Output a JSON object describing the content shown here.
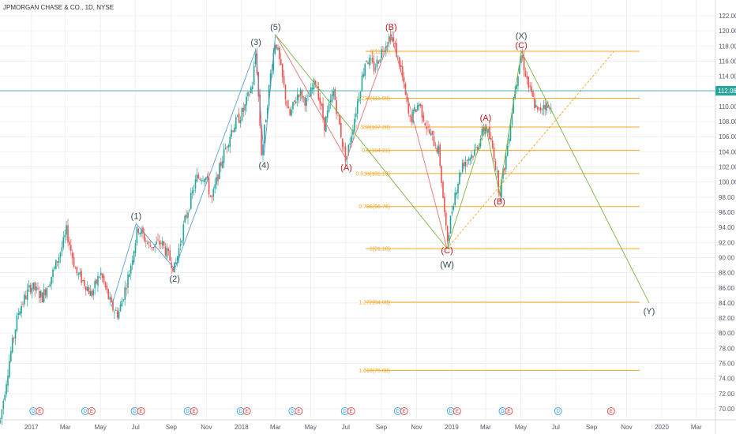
{
  "chart_data": {
    "type": "candlestick",
    "title": "JPMORGAN CHASE & CO., 1D, NYSE",
    "current_price": "112.08",
    "ylim": [
      69,
      122
    ],
    "y_ticks": [
      "70.00",
      "72.00",
      "74.00",
      "76.00",
      "78.00",
      "80.00",
      "82.00",
      "84.00",
      "86.00",
      "88.00",
      "90.00",
      "92.00",
      "94.00",
      "96.00",
      "98.00",
      "100.00",
      "102.00",
      "104.00",
      "106.00",
      "108.00",
      "110.00",
      "112.00",
      "114.00",
      "116.00",
      "118.00",
      "120.00",
      "122.00"
    ],
    "x_ticks": [
      "2017",
      "Mar",
      "May",
      "Jul",
      "Sep",
      "Nov",
      "2018",
      "Mar",
      "May",
      "Jul",
      "Sep",
      "Nov",
      "2019",
      "Mar",
      "May",
      "Jul",
      "Sep",
      "Nov",
      "2020",
      "Mar"
    ],
    "x_range": [
      "2016-12",
      "2020-03"
    ],
    "price_path": [
      [
        "2016-11-15",
        72.0
      ],
      [
        "2016-11-25",
        77.0
      ],
      [
        "2016-12-10",
        83.0
      ],
      [
        "2016-12-31",
        86.3
      ],
      [
        "2017-01-20",
        84.8
      ],
      [
        "2017-02-10",
        88.5
      ],
      [
        "2017-02-28",
        92.5
      ],
      [
        "2017-03-02",
        93.8
      ],
      [
        "2017-03-20",
        88.0
      ],
      [
        "2017-04-05",
        86.5
      ],
      [
        "2017-04-15",
        85.0
      ],
      [
        "2017-05-01",
        88.0
      ],
      [
        "2017-05-20",
        83.5
      ],
      [
        "2017-06-01",
        82.5
      ],
      [
        "2017-06-20",
        88.0
      ],
      [
        "2017-07-05",
        94.0
      ],
      [
        "2017-07-25",
        91.5
      ],
      [
        "2017-08-15",
        92.0
      ],
      [
        "2017-09-07",
        88.5
      ],
      [
        "2017-09-25",
        95.0
      ],
      [
        "2017-10-15",
        100.5
      ],
      [
        "2017-10-30",
        101.0
      ],
      [
        "2017-11-10",
        97.5
      ],
      [
        "2017-11-28",
        103.0
      ],
      [
        "2017-12-15",
        107.0
      ],
      [
        "2018-01-05",
        109.5
      ],
      [
        "2018-01-20",
        113.0
      ],
      [
        "2018-01-26",
        117.5
      ],
      [
        "2018-02-05",
        103.5
      ],
      [
        "2018-02-20",
        114.0
      ],
      [
        "2018-03-01",
        119.0
      ],
      [
        "2018-03-10",
        115.0
      ],
      [
        "2018-03-25",
        108.5
      ],
      [
        "2018-04-10",
        112.0
      ],
      [
        "2018-04-25",
        110.5
      ],
      [
        "2018-05-10",
        113.5
      ],
      [
        "2018-05-25",
        107.5
      ],
      [
        "2018-06-10",
        112.0
      ],
      [
        "2018-06-28",
        104.0
      ],
      [
        "2018-07-02",
        103.0
      ],
      [
        "2018-07-20",
        110.0
      ],
      [
        "2018-08-05",
        116.5
      ],
      [
        "2018-08-20",
        115.0
      ],
      [
        "2018-09-05",
        118.0
      ],
      [
        "2018-09-18",
        119.5
      ],
      [
        "2018-10-05",
        115.0
      ],
      [
        "2018-10-20",
        108.0
      ],
      [
        "2018-11-05",
        110.5
      ],
      [
        "2018-11-20",
        107.0
      ],
      [
        "2018-12-10",
        104.0
      ],
      [
        "2018-12-24",
        92.0
      ],
      [
        "2019-01-05",
        98.0
      ],
      [
        "2019-01-20",
        102.5
      ],
      [
        "2019-02-10",
        104.0
      ],
      [
        "2019-03-01",
        107.5
      ],
      [
        "2019-03-15",
        104.0
      ],
      [
        "2019-03-25",
        98.5
      ],
      [
        "2019-04-05",
        103.0
      ],
      [
        "2019-04-20",
        112.0
      ],
      [
        "2019-05-02",
        117.0
      ],
      [
        "2019-05-15",
        112.5
      ],
      [
        "2019-05-31",
        109.0
      ],
      [
        "2019-06-10",
        110.5
      ],
      [
        "2019-06-20",
        109.5
      ],
      [
        "2019-06-28",
        112.08
      ]
    ],
    "fib_levels": [
      {
        "label": "0(117.3)",
        "value": 117.3
      },
      {
        "label": "0.236(111.09)",
        "value": 111.09
      },
      {
        "label": "0.382(107.28)",
        "value": 107.28
      },
      {
        "label": "0.5(104.21)",
        "value": 104.21
      },
      {
        "label": "0.618(101.13)",
        "value": 101.13
      },
      {
        "label": "0.786(96.76)",
        "value": 96.76
      },
      {
        "label": "1(91.18)",
        "value": 91.18
      },
      {
        "label": "1.272(84.09)",
        "value": 84.09
      },
      {
        "label": "1.618(75.08)",
        "value": 75.08
      }
    ],
    "impulse_waves": [
      {
        "label": "(1)",
        "date": "2017-07-02",
        "value": 94.5
      },
      {
        "label": "(2)",
        "date": "2017-09-07",
        "value": 88.5
      },
      {
        "label": "(3)",
        "date": "2018-01-26",
        "value": 117.5
      },
      {
        "label": "(4)",
        "date": "2018-02-09",
        "value": 103.5
      },
      {
        "label": "(5)",
        "date": "2018-03-01",
        "value": 119.5
      }
    ],
    "abc_waves_2018": [
      {
        "label": "(A)",
        "date": "2018-07-02",
        "value": 103.0
      },
      {
        "label": "(B)",
        "date": "2018-09-18",
        "value": 119.5
      },
      {
        "label": "(C)",
        "date": "2018-12-24",
        "value": 91.2
      }
    ],
    "abc_waves_2019": [
      {
        "label": "(A)",
        "date": "2019-03-01",
        "value": 107.5
      },
      {
        "label": "(B)",
        "date": "2019-03-25",
        "value": 98.5
      },
      {
        "label": "(C)",
        "date": "2019-05-02",
        "value": 117.3
      }
    ],
    "wxy_waves": [
      {
        "label": "(W)",
        "date": "2018-12-24",
        "value": 91.2
      },
      {
        "label": "(X)",
        "date": "2019-05-02",
        "value": 117.3
      },
      {
        "label": "(Y)",
        "date": "2019-12-10",
        "value": 84.0
      }
    ],
    "trendline": {
      "from": [
        "2018-12-24",
        91.2
      ],
      "to": [
        "2019-10-10",
        117.3
      ]
    },
    "event_badges": [
      {
        "date": "2017-01-10",
        "letters": [
          "D",
          "E"
        ]
      },
      {
        "date": "2017-04-10",
        "letters": [
          "D",
          "E"
        ]
      },
      {
        "date": "2017-07-05",
        "letters": [
          "D",
          "E"
        ]
      },
      {
        "date": "2017-10-05",
        "letters": [
          "D",
          "E"
        ]
      },
      {
        "date": "2018-01-05",
        "letters": [
          "D",
          "E"
        ]
      },
      {
        "date": "2018-04-05",
        "letters": [
          "D",
          "E"
        ]
      },
      {
        "date": "2018-07-05",
        "letters": [
          "D",
          "E"
        ]
      },
      {
        "date": "2018-10-05",
        "letters": [
          "D",
          "E"
        ]
      },
      {
        "date": "2019-01-05",
        "letters": [
          "D",
          "E"
        ]
      },
      {
        "date": "2019-04-05",
        "letters": [
          "D",
          "E"
        ]
      },
      {
        "date": "2019-07-05",
        "letters": [
          "D"
        ]
      },
      {
        "date": "2019-10-05",
        "letters": [
          "E"
        ]
      }
    ],
    "colors": {
      "up": "#26a69a",
      "down": "#ef5350",
      "fib": "#f5a623",
      "wave_black": "#344b57",
      "wave_red": "#b71c1c",
      "wave_line_blue": "#5b9bd5",
      "wave_line_red": "#e57373",
      "wave_line_green": "#7cb342",
      "price_line": "#26a69a"
    }
  }
}
